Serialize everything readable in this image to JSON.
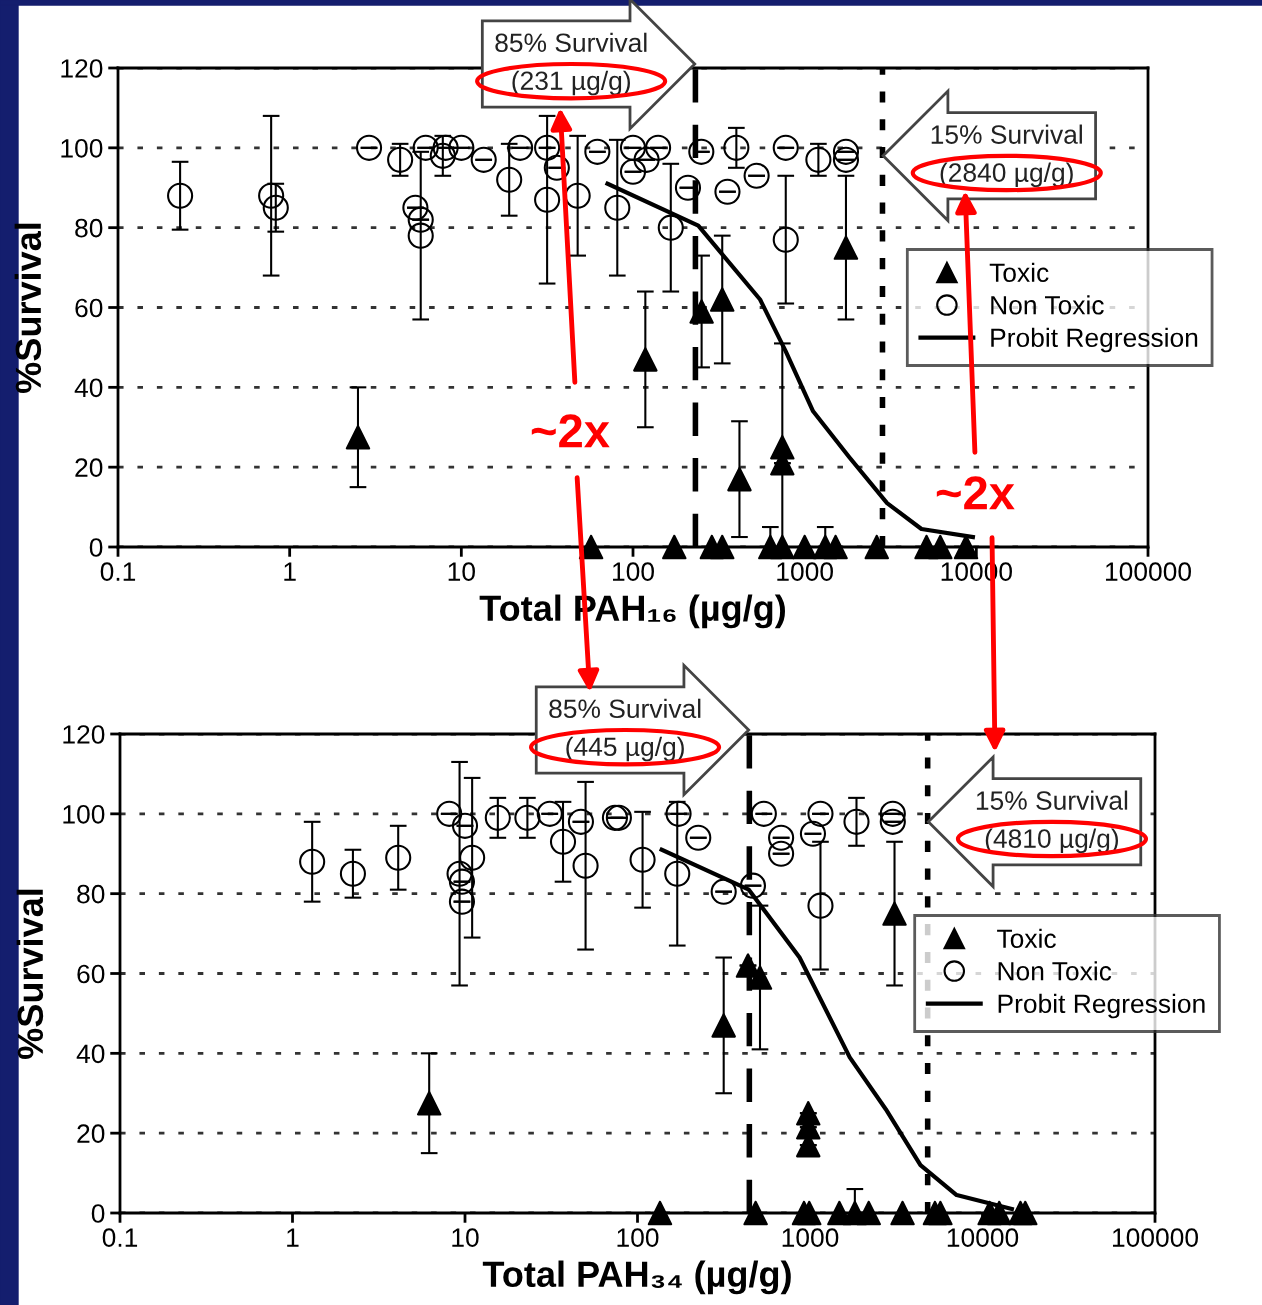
{
  "chart_data": [
    {
      "type": "scatter",
      "xlabel": "Total PAH₁₆ (µg/g)",
      "ylabel": "%Survival",
      "log": "x",
      "xlim": [
        0.1,
        100000
      ],
      "xticks": [
        0.1,
        1,
        10,
        100,
        1000,
        10000,
        100000
      ],
      "ylim": [
        0,
        120
      ],
      "yticks": [
        0,
        20,
        40,
        60,
        80,
        100,
        120
      ],
      "grid": "y",
      "legend": "right",
      "series": [
        {
          "name": "Toxic",
          "marker": "triangle",
          "color": "#000000",
          "x": [
            2.5,
            118,
            251,
            331,
            417,
            741,
            741,
            1740,
            57,
            174,
            288,
            331,
            631,
            741,
            1000,
            1318,
            1514,
            2630,
            5128,
            6166,
            8710
          ],
          "values": [
            27.5,
            47,
            59,
            62,
            17,
            25,
            21,
            75,
            0,
            0,
            0,
            0,
            0,
            0,
            0,
            0,
            0,
            0,
            0,
            0,
            0
          ],
          "errors": [
            12.5,
            17,
            14,
            16,
            14.5,
            26,
            null,
            18,
            null,
            null,
            null,
            null,
            5,
            null,
            null,
            5,
            null,
            null,
            null,
            null,
            null
          ]
        },
        {
          "name": "Non Toxic",
          "marker": "circle",
          "color": "#000000",
          "x": [
            0.23,
            0.78,
            0.83,
            2.9,
            4.4,
            5.4,
            5.8,
            5.8,
            6.2,
            7.8,
            8.1,
            10,
            13.5,
            19,
            22,
            31.6,
            31.6,
            36,
            47.6,
            62,
            81,
            100,
            100,
            120,
            140,
            166,
            209,
            250,
            355,
            400,
            525,
            776,
            776,
            1202,
            1740,
            1740
          ],
          "values": [
            88,
            88,
            85,
            100,
            97,
            85,
            82,
            78,
            100,
            98,
            100,
            100,
            97,
            92,
            100,
            100,
            87,
            95,
            88,
            99,
            85,
            94,
            100,
            97,
            100,
            80,
            90,
            99,
            89,
            100,
            93,
            77,
            100,
            97,
            99,
            97
          ],
          "errors": [
            8.5,
            20,
            6,
            null,
            4,
            null,
            null,
            21,
            null,
            5,
            null,
            null,
            null,
            9,
            null,
            null,
            21,
            null,
            15,
            null,
            17,
            null,
            null,
            null,
            null,
            16,
            null,
            null,
            null,
            5,
            null,
            16,
            null,
            4,
            null,
            null
          ]
        },
        {
          "name": "Probit Regression",
          "type": "line",
          "marker": "none",
          "line_style": "solid",
          "color": "#000000",
          "x": [
            71,
            240,
            550,
            776,
            1120,
            1820,
            3020,
            4790,
            9550
          ],
          "values": [
            91,
            80.5,
            62,
            49,
            34,
            22.5,
            11,
            4.5,
            2.5
          ]
        }
      ],
      "ref_lines": [
        {
          "axis": "x",
          "value": 231,
          "label": "85% Survival\n(231 µg/g)",
          "line_style": "dashed",
          "color": "#000000"
        },
        {
          "axis": "x",
          "value": 2840,
          "label": "15% Survival\n(2840 µg/g)",
          "line_style": "dotted",
          "color": "#000000"
        }
      ],
      "annotations": [
        "~2x",
        "~2x"
      ]
    },
    {
      "type": "scatter",
      "xlabel": "Total PAH₃₄ (µg/g)",
      "ylabel": "%Survival",
      "log": "x",
      "xlim": [
        0.1,
        100000
      ],
      "xticks": [
        0.1,
        1,
        10,
        100,
        1000,
        10000,
        100000
      ],
      "ylim": [
        0,
        120
      ],
      "yticks": [
        0,
        20,
        40,
        60,
        80,
        100,
        120
      ],
      "grid": "y",
      "legend": "right",
      "series": [
        {
          "name": "Toxic",
          "marker": "triangle",
          "color": "#000000",
          "x": [
            6.2,
            316,
            437,
            513,
            977,
            977,
            977,
            3090,
            135,
            484,
            923,
            990,
            1480,
            1820,
            2190,
            3440,
            5300,
            5700,
            11000,
            12500,
            16600,
            17700
          ],
          "values": [
            27.5,
            47,
            62,
            59,
            25,
            21.5,
            17,
            75,
            0,
            0,
            0,
            0,
            0,
            0,
            0,
            0,
            0,
            0,
            0,
            0,
            0,
            0
          ],
          "errors": [
            12.5,
            17,
            null,
            18,
            null,
            null,
            null,
            18,
            null,
            null,
            null,
            null,
            null,
            6,
            null,
            null,
            null,
            null,
            null,
            null,
            null,
            null
          ]
        },
        {
          "name": "Non Toxic",
          "marker": "circle",
          "color": "#000000",
          "x": [
            1.3,
            2.24,
            4.1,
            8.1,
            9.3,
            9.6,
            9.6,
            10,
            11,
            15.5,
            23,
            31,
            37,
            47,
            50,
            74,
            78,
            107,
            170,
            173,
            225,
            316,
            467,
            540,
            680,
            680,
            1040,
            1150,
            1150,
            1860,
            3020,
            3020
          ],
          "values": [
            88,
            85,
            89,
            100,
            85,
            83,
            78,
            97,
            89,
            99,
            99,
            100,
            93,
            98,
            87,
            99,
            99,
            88.5,
            85,
            100,
            94,
            80.5,
            82,
            100,
            90,
            94,
            95,
            77,
            100,
            98,
            100,
            98
          ],
          "errors": [
            10,
            6,
            8,
            null,
            28,
            null,
            null,
            null,
            20,
            5,
            5,
            null,
            10,
            null,
            21,
            null,
            null,
            12,
            18,
            null,
            null,
            null,
            null,
            null,
            null,
            null,
            null,
            16,
            null,
            6,
            null,
            null
          ]
        },
        {
          "name": "Probit Regression",
          "type": "line",
          "marker": "none",
          "line_style": "solid",
          "color": "#000000",
          "x": [
            138,
            442,
            870,
            1700,
            2750,
            4370,
            7080,
            14800
          ],
          "values": [
            91,
            81,
            64,
            39,
            26,
            12,
            4.5,
            1
          ]
        }
      ],
      "ref_lines": [
        {
          "axis": "x",
          "value": 445,
          "label": "85% Survival\n(445 µg/g)",
          "line_style": "dashed",
          "color": "#000000"
        },
        {
          "axis": "x",
          "value": 4810,
          "label": "15% Survival\n(4810 µg/g)",
          "line_style": "dotted",
          "color": "#000000"
        }
      ]
    }
  ]
}
